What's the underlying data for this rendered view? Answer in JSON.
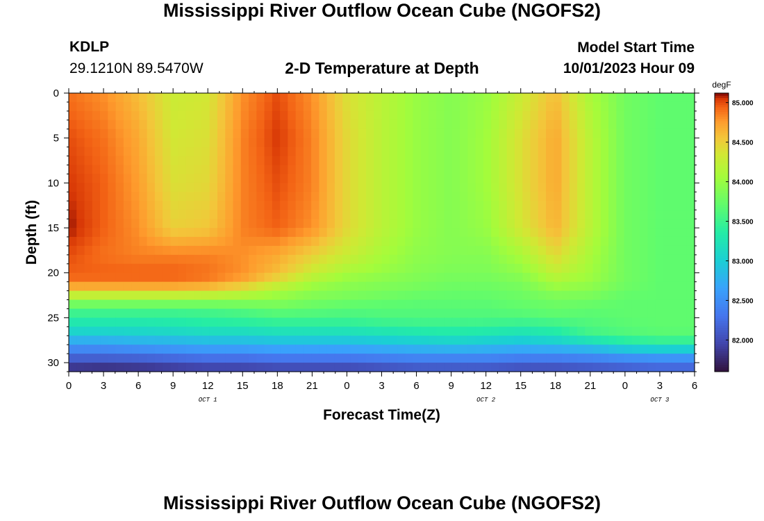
{
  "page": {
    "title": "Mississippi River Outflow Ocean Cube (NGOFS2)",
    "station_id": "KDLP",
    "coordinates": "29.1210N  89.5470W",
    "model_start_label": "Model Start Time",
    "model_start_value": "10/01/2023 Hour 09",
    "bottom_title": "Mississippi River Outflow Ocean Cube (NGOFS2)"
  },
  "chart_data": {
    "type": "heatmap",
    "title": "2-D Temperature at Depth",
    "xlabel": "Forecast Time(Z)",
    "ylabel": "Depth (ft)",
    "x_range_hours": [
      0,
      54
    ],
    "y_range": [
      0,
      31
    ],
    "x_tick_labels": [
      "0",
      "3",
      "6",
      "9",
      "12",
      "15",
      "18",
      "21",
      "0",
      "3",
      "6",
      "9",
      "12",
      "15",
      "18",
      "21",
      "0",
      "3",
      "6"
    ],
    "y_ticks": [
      0,
      5,
      10,
      15,
      20,
      25,
      30
    ],
    "date_labels": [
      {
        "text": "OCT 1",
        "hour": 12
      },
      {
        "text": "OCT 2",
        "hour": 36
      },
      {
        "text": "OCT 3",
        "hour": 51
      }
    ],
    "colorbar": {
      "unit": "degF",
      "ticks": [
        "82.000",
        "82.500",
        "83.000",
        "83.500",
        "84.000",
        "84.500",
        "85.000"
      ],
      "tick_values": [
        82.0,
        82.5,
        83.0,
        83.5,
        84.0,
        84.5,
        85.0
      ],
      "range": [
        81.6,
        85.12
      ],
      "colormap": "turbo"
    },
    "time_hours": [
      0,
      3,
      6,
      9,
      12,
      15,
      18,
      21,
      24,
      27,
      30,
      33,
      36,
      39,
      42,
      45,
      48,
      51,
      54
    ],
    "depths_ft": [
      0,
      5,
      10,
      15,
      18,
      20,
      21,
      22,
      23,
      24,
      25,
      26,
      27,
      28,
      29,
      30,
      31
    ],
    "values": [
      [
        84.9,
        84.8,
        84.6,
        84.3,
        84.35,
        84.8,
        85.0,
        84.8,
        84.4,
        84.2,
        84.0,
        83.9,
        84.0,
        84.3,
        84.6,
        84.1,
        83.8,
        83.7,
        83.7
      ],
      [
        85.0,
        84.9,
        84.7,
        84.35,
        84.4,
        84.85,
        85.05,
        84.85,
        84.45,
        84.2,
        84.0,
        83.9,
        84.05,
        84.4,
        84.7,
        84.2,
        83.8,
        83.7,
        83.7
      ],
      [
        85.05,
        84.95,
        84.75,
        84.4,
        84.45,
        84.85,
        85.0,
        84.85,
        84.45,
        84.2,
        84.0,
        83.9,
        84.05,
        84.4,
        84.7,
        84.2,
        83.8,
        83.7,
        83.7
      ],
      [
        85.1,
        84.95,
        84.8,
        84.5,
        84.55,
        84.85,
        84.95,
        84.8,
        84.45,
        84.2,
        84.0,
        83.9,
        84.0,
        84.35,
        84.65,
        84.2,
        83.8,
        83.7,
        83.7
      ],
      [
        85.0,
        84.9,
        84.85,
        84.85,
        84.85,
        84.8,
        84.7,
        84.5,
        84.3,
        84.1,
        83.95,
        83.9,
        83.9,
        84.1,
        84.45,
        84.1,
        83.8,
        83.7,
        83.7
      ],
      [
        84.95,
        84.95,
        84.95,
        84.95,
        84.9,
        84.8,
        84.6,
        84.3,
        84.1,
        84.0,
        83.9,
        83.85,
        83.85,
        83.95,
        84.25,
        84.05,
        83.8,
        83.7,
        83.7
      ],
      [
        84.9,
        84.9,
        84.9,
        84.9,
        84.85,
        84.7,
        84.4,
        84.1,
        83.95,
        83.9,
        83.85,
        83.8,
        83.8,
        83.85,
        84.1,
        84.0,
        83.8,
        83.7,
        83.7
      ],
      [
        84.5,
        84.5,
        84.5,
        84.5,
        84.45,
        84.3,
        84.1,
        83.95,
        83.9,
        83.85,
        83.8,
        83.75,
        83.75,
        83.8,
        83.95,
        83.9,
        83.75,
        83.7,
        83.7
      ],
      [
        84.0,
        84.0,
        84.0,
        84.0,
        84.0,
        84.0,
        83.95,
        83.85,
        83.8,
        83.75,
        83.7,
        83.7,
        83.7,
        83.75,
        83.8,
        83.8,
        83.7,
        83.7,
        83.7
      ],
      [
        83.6,
        83.6,
        83.6,
        83.6,
        83.6,
        83.65,
        83.75,
        83.7,
        83.65,
        83.65,
        83.65,
        83.65,
        83.65,
        83.7,
        83.75,
        83.7,
        83.7,
        83.7,
        83.7
      ],
      [
        83.4,
        83.4,
        83.4,
        83.4,
        83.45,
        83.5,
        83.55,
        83.55,
        83.55,
        83.6,
        83.6,
        83.6,
        83.6,
        83.6,
        83.65,
        83.65,
        83.7,
        83.7,
        83.7
      ],
      [
        83.2,
        83.2,
        83.2,
        83.25,
        83.3,
        83.3,
        83.35,
        83.35,
        83.35,
        83.4,
        83.45,
        83.45,
        83.45,
        83.4,
        83.45,
        83.6,
        83.65,
        83.7,
        83.7
      ],
      [
        82.95,
        82.95,
        83.0,
        83.0,
        83.05,
        83.05,
        83.1,
        83.1,
        83.1,
        83.15,
        83.2,
        83.25,
        83.2,
        83.15,
        83.25,
        83.5,
        83.6,
        83.65,
        83.65
      ],
      [
        82.6,
        82.6,
        82.65,
        82.7,
        82.75,
        82.75,
        82.8,
        82.8,
        82.8,
        82.85,
        82.9,
        82.95,
        82.9,
        82.85,
        82.9,
        83.0,
        83.2,
        83.3,
        83.3
      ],
      [
        82.3,
        82.3,
        82.35,
        82.4,
        82.45,
        82.45,
        82.5,
        82.5,
        82.5,
        82.55,
        82.6,
        82.6,
        82.6,
        82.55,
        82.55,
        82.6,
        82.7,
        82.75,
        82.75
      ],
      [
        82.0,
        82.0,
        82.0,
        82.05,
        82.1,
        82.1,
        82.15,
        82.15,
        82.15,
        82.2,
        82.25,
        82.25,
        82.25,
        82.2,
        82.2,
        82.25,
        82.3,
        82.35,
        82.35
      ],
      [
        81.75,
        81.7,
        81.75,
        81.8,
        81.85,
        81.85,
        81.9,
        81.9,
        81.9,
        81.95,
        82.0,
        82.0,
        82.0,
        81.95,
        81.95,
        82.0,
        82.05,
        82.1,
        82.1
      ]
    ]
  }
}
